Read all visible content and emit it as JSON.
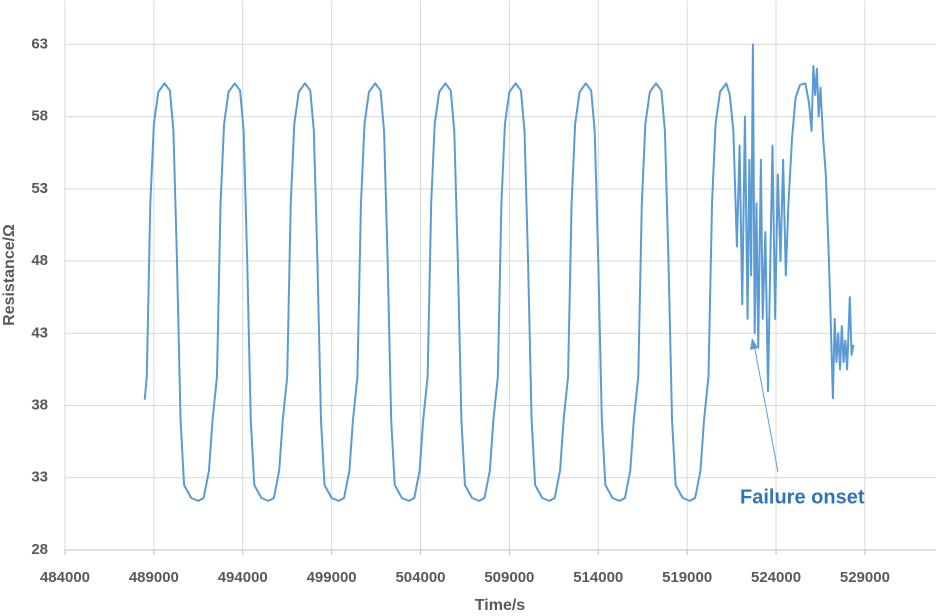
{
  "chart_data": {
    "type": "line",
    "xlabel": "Time/s",
    "ylabel": "Resistance/Ω",
    "annotation": "Failure onset",
    "xlim": [
      484000,
      533000
    ],
    "xticks": [
      484000,
      489000,
      494000,
      499000,
      504000,
      509000,
      514000,
      519000,
      524000,
      529000
    ],
    "ylim": [
      28,
      66
    ],
    "yticks": [
      28,
      33,
      38,
      43,
      48,
      53,
      58,
      63
    ],
    "grid": true,
    "x": [
      488485,
      488600,
      488800,
      489000,
      489250,
      489600,
      489900,
      490100,
      490300,
      490500,
      490700,
      491100,
      491500,
      491800,
      492100,
      492300,
      492550,
      492750,
      492950,
      493200,
      493550,
      493850,
      494050,
      494250,
      494450,
      494650,
      495050,
      495450,
      495750,
      496050,
      496250,
      496500,
      496700,
      496900,
      497150,
      497500,
      497800,
      498000,
      498200,
      498400,
      498600,
      499000,
      499400,
      499700,
      500000,
      500200,
      500450,
      500650,
      500850,
      501100,
      501450,
      501750,
      501950,
      502150,
      502350,
      502550,
      502950,
      503350,
      503650,
      503950,
      504150,
      504400,
      504600,
      504800,
      505050,
      505400,
      505700,
      505900,
      506100,
      506300,
      506500,
      506900,
      507300,
      507600,
      507900,
      508100,
      508350,
      508550,
      508750,
      509000,
      509350,
      509650,
      509850,
      510050,
      510250,
      510450,
      510850,
      511250,
      511550,
      511850,
      512050,
      512300,
      512500,
      512700,
      512950,
      513300,
      513600,
      513800,
      514000,
      514200,
      514400,
      514800,
      515200,
      515500,
      515800,
      516000,
      516250,
      516450,
      516650,
      516900,
      517250,
      517550,
      517750,
      517950,
      518150,
      518350,
      518750,
      519150,
      519450,
      519750,
      519950,
      520200,
      520400,
      520600,
      520850,
      521200,
      521400,
      521600,
      521800,
      521950,
      522100,
      522250,
      522400,
      522500,
      522600,
      522700,
      522800,
      522900,
      523000,
      523150,
      523250,
      523400,
      523550,
      523650,
      523800,
      523950,
      524100,
      524250,
      524400,
      524550,
      524700,
      524900,
      525100,
      525350,
      525650,
      525850,
      526000,
      526100,
      526200,
      526300,
      526400,
      526500,
      526650,
      526800,
      526950,
      527050,
      527200,
      527300,
      527400,
      527500,
      527600,
      527700,
      527800,
      527900,
      528000,
      528150,
      528250,
      528350
    ],
    "series": [
      {
        "color": "#5b9bd5",
        "values": [
          38.4,
          40,
          52,
          57.5,
          59.7,
          60.3,
          59.8,
          57,
          48,
          37,
          32.5,
          31.6,
          31.4,
          31.6,
          33.5,
          37,
          40,
          52,
          57.5,
          59.7,
          60.3,
          59.8,
          57,
          48,
          37,
          32.5,
          31.6,
          31.4,
          31.6,
          33.5,
          37,
          40,
          52,
          57.5,
          59.7,
          60.3,
          59.8,
          57,
          48,
          37,
          32.5,
          31.6,
          31.4,
          31.6,
          33.5,
          37,
          40,
          52,
          57.5,
          59.7,
          60.3,
          59.8,
          57,
          48,
          37,
          32.5,
          31.6,
          31.4,
          31.6,
          33.5,
          37,
          40,
          52,
          57.5,
          59.7,
          60.3,
          59.8,
          57,
          48,
          37,
          32.5,
          31.6,
          31.4,
          31.6,
          33.5,
          37,
          40,
          52,
          57.5,
          59.7,
          60.3,
          59.8,
          57,
          48,
          37,
          32.5,
          31.6,
          31.4,
          31.6,
          33.5,
          37,
          40,
          52,
          57.5,
          59.7,
          60.3,
          59.8,
          57,
          48,
          37,
          32.5,
          31.6,
          31.4,
          31.6,
          33.5,
          37,
          40,
          52,
          57.5,
          59.7,
          60.3,
          59.8,
          57,
          48,
          37,
          32.5,
          31.6,
          31.4,
          31.6,
          33.5,
          37,
          40,
          52,
          57.5,
          59.7,
          60.3,
          59.5,
          57,
          49,
          56,
          45,
          58,
          44,
          55,
          47,
          63,
          43,
          52,
          42,
          55,
          44,
          50,
          39,
          46,
          56,
          44,
          54,
          48,
          55,
          47,
          52,
          56.5,
          59.3,
          60.2,
          60.3,
          59,
          57,
          61.5,
          59.5,
          61.3,
          58,
          60,
          56.5,
          54,
          49,
          45,
          38.5,
          44,
          41,
          43,
          40.5,
          43.5,
          41,
          42.5,
          40.5,
          45.5,
          41.5,
          42.2
        ]
      }
    ]
  }
}
